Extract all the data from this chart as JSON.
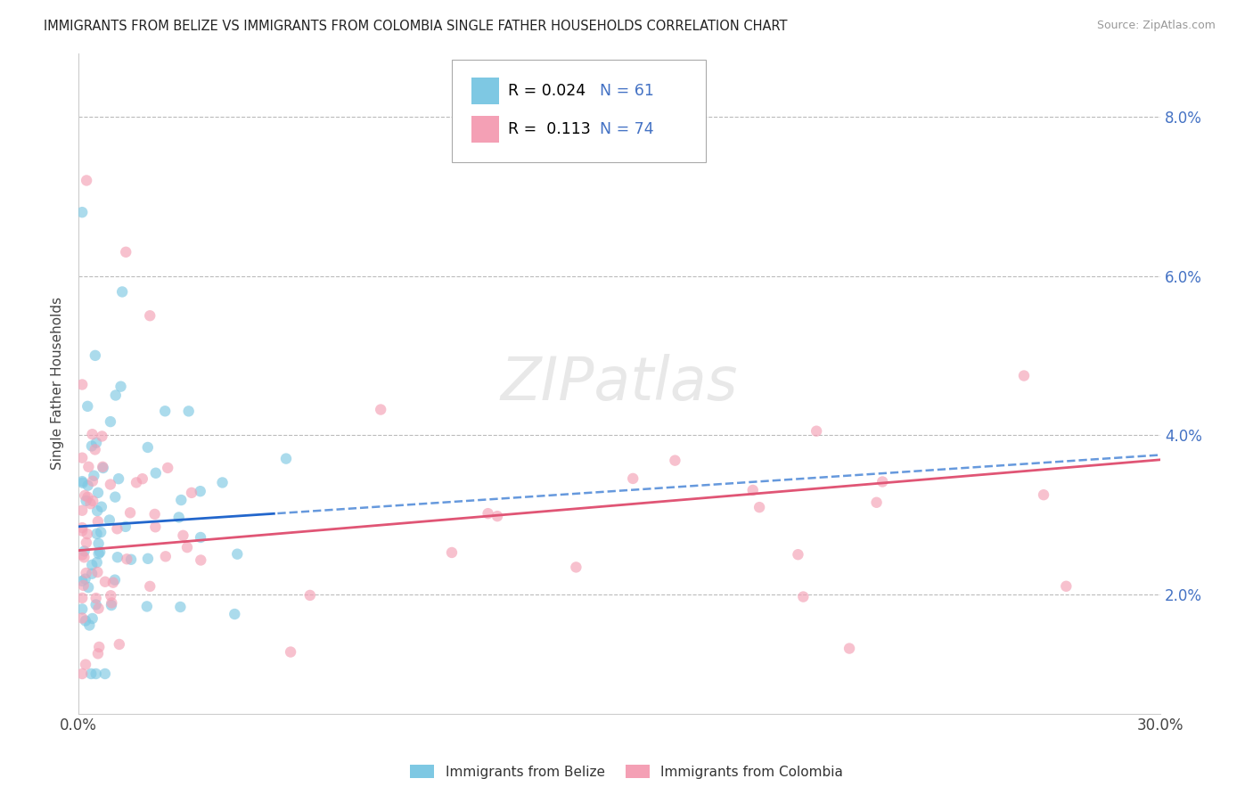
{
  "title": "IMMIGRANTS FROM BELIZE VS IMMIGRANTS FROM COLOMBIA SINGLE FATHER HOUSEHOLDS CORRELATION CHART",
  "source": "Source: ZipAtlas.com",
  "ylabel": "Single Father Households",
  "xmin": 0.0,
  "xmax": 0.3,
  "ymin": 0.005,
  "ymax": 0.088,
  "yticks": [
    0.02,
    0.04,
    0.06,
    0.08
  ],
  "ytick_labels": [
    "2.0%",
    "4.0%",
    "6.0%",
    "8.0%"
  ],
  "xtick_labels": [
    "0.0%",
    "30.0%"
  ],
  "legend1_r": "R = 0.024",
  "legend1_n": "N = 61",
  "legend2_r": "R =  0.113",
  "legend2_n": "N = 74",
  "belize_color": "#7ec8e3",
  "colombia_color": "#f4a0b5",
  "watermark_text": "ZIPatlas",
  "bottom_legend_label1": "Immigrants from Belize",
  "bottom_legend_label2": "Immigrants from Colombia",
  "belize_trend_intercept": 0.0285,
  "belize_trend_slope": 0.03,
  "colombia_trend_intercept": 0.0255,
  "colombia_trend_slope": 0.038
}
